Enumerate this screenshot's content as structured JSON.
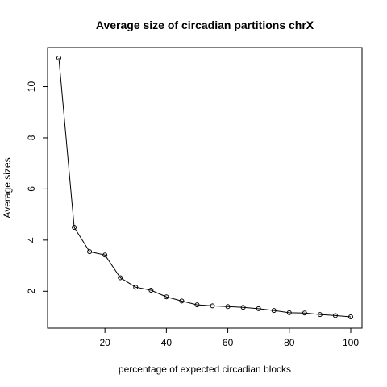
{
  "chart_data": {
    "type": "line",
    "title": "Average size of circadian partitions chrX",
    "xlabel": "percentage of expected circadian blocks",
    "ylabel": "Average sizes",
    "x": [
      5,
      10,
      15,
      20,
      25,
      30,
      35,
      40,
      45,
      50,
      55,
      60,
      65,
      70,
      75,
      80,
      85,
      90,
      95,
      100
    ],
    "series": [
      {
        "values": [
          11.12,
          4.5,
          3.55,
          3.42,
          2.53,
          2.16,
          2.04,
          1.78,
          1.62,
          1.47,
          1.43,
          1.4,
          1.37,
          1.32,
          1.25,
          1.16,
          1.15,
          1.09,
          1.05,
          1.0
        ]
      }
    ],
    "xlim": [
      5,
      100
    ],
    "ylim": [
      1.0,
      11.12
    ],
    "xticks": [
      20,
      40,
      60,
      80,
      100
    ],
    "yticks": [
      2,
      4,
      6,
      8,
      10
    ],
    "markers": "open-circle",
    "grid": false,
    "legend": "none"
  }
}
